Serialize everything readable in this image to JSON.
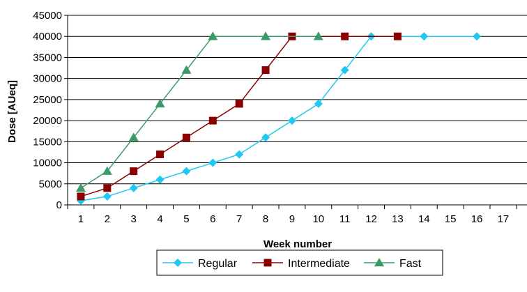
{
  "chart_data": {
    "type": "line",
    "title": "",
    "xlabel": "Week number",
    "ylabel": "Dose [AUeq]",
    "categories": [
      "1",
      "2",
      "3",
      "4",
      "5",
      "6",
      "7",
      "8",
      "9",
      "10",
      "11",
      "12",
      "13",
      "14",
      "15",
      "16",
      "17"
    ],
    "ylim": [
      0,
      45000
    ],
    "yticks": [
      0,
      5000,
      10000,
      15000,
      20000,
      25000,
      30000,
      35000,
      40000,
      45000
    ],
    "grid": "horizontal",
    "legend_position": "bottom",
    "series": [
      {
        "name": "Regular",
        "color": "#1ec8f0",
        "marker": "diamond",
        "x": [
          1,
          2,
          3,
          4,
          5,
          6,
          7,
          8,
          9,
          10,
          11,
          12,
          14,
          16
        ],
        "values": [
          1000,
          2000,
          4000,
          6000,
          8000,
          10000,
          12000,
          16000,
          20000,
          24000,
          32000,
          40000,
          40000,
          40000
        ]
      },
      {
        "name": "Intermediate",
        "color": "#8b0000",
        "marker": "square",
        "x": [
          1,
          2,
          3,
          4,
          5,
          6,
          7,
          8,
          9,
          11,
          13
        ],
        "values": [
          2000,
          4000,
          8000,
          12000,
          16000,
          20000,
          24000,
          32000,
          40000,
          40000,
          40000
        ]
      },
      {
        "name": "Fast",
        "color": "#3a9a6a",
        "marker": "triangle",
        "x": [
          1,
          2,
          3,
          4,
          5,
          6,
          8,
          10
        ],
        "values": [
          4000,
          8000,
          16000,
          24000,
          32000,
          40000,
          40000,
          40000
        ]
      }
    ]
  }
}
